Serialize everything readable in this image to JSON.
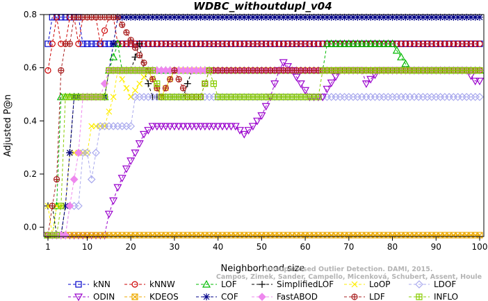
{
  "chart_data": {
    "type": "line",
    "title": "WDBC_withoutdupl_v04",
    "xlabel": "Neighborhood size",
    "ylabel": "Adjusted P@n",
    "xlim": [
      1,
      100
    ],
    "ylim": [
      -0.035,
      0.8
    ],
    "x_ticks": [
      1,
      10,
      20,
      30,
      40,
      50,
      60,
      70,
      80,
      90,
      100
    ],
    "y_ticks": [
      0.0,
      0.2,
      0.4,
      0.6,
      0.8
    ],
    "grid": false,
    "legend_position": "bottom",
    "watermark": [
      "Unsupervised Outlier Detection. DAMI, 2015.",
      "Campos, Zimek, Sander, Campello, Micenková, Schubert, Assent, Houle"
    ],
    "series": [
      {
        "name": "kNN",
        "color": "#0000cc",
        "marker": "square",
        "points": [
          [
            1,
            0.69
          ],
          [
            2,
            0.79
          ],
          [
            5,
            0.79
          ],
          [
            8,
            0.79
          ],
          [
            9,
            0.69
          ],
          [
            20,
            0.69
          ],
          [
            60,
            0.69
          ],
          [
            100,
            0.69
          ]
        ]
      },
      {
        "name": "kNNW",
        "color": "#cc0000",
        "marker": "circle",
        "points": [
          [
            1,
            0.59
          ],
          [
            2,
            0.69
          ],
          [
            3,
            0.79
          ],
          [
            4,
            0.69
          ],
          [
            5,
            0.69
          ],
          [
            6,
            0.79
          ],
          [
            7,
            0.79
          ],
          [
            8,
            0.69
          ],
          [
            9,
            0.79
          ],
          [
            12,
            0.79
          ],
          [
            13,
            0.69
          ],
          [
            15,
            0.79
          ],
          [
            16,
            0.79
          ],
          [
            17,
            0.69
          ],
          [
            100,
            0.69
          ]
        ]
      },
      {
        "name": "LOF",
        "color": "#00bb00",
        "marker": "triangle-up",
        "points": [
          [
            1,
            -0.03
          ],
          [
            2,
            -0.03
          ],
          [
            3,
            0.08
          ],
          [
            4,
            0.49
          ],
          [
            14,
            0.49
          ],
          [
            15,
            0.59
          ],
          [
            17,
            0.69
          ],
          [
            18,
            0.59
          ],
          [
            64,
            0.59
          ],
          [
            65,
            0.69
          ],
          [
            80,
            0.69
          ],
          [
            84,
            0.59
          ],
          [
            100,
            0.59
          ]
        ]
      },
      {
        "name": "SimplifiedLOF",
        "color": "#000000",
        "marker": "plus",
        "points": [
          [
            1,
            0.08
          ],
          [
            2,
            0.08
          ],
          [
            3,
            -0.03
          ],
          [
            4,
            -0.03
          ],
          [
            5,
            0.08
          ],
          [
            6,
            0.28
          ],
          [
            7,
            0.49
          ],
          [
            14,
            0.49
          ],
          [
            15,
            0.59
          ],
          [
            20,
            0.59
          ],
          [
            22,
            0.69
          ],
          [
            23,
            0.59
          ],
          [
            25,
            0.49
          ],
          [
            32,
            0.49
          ],
          [
            34,
            0.59
          ],
          [
            100,
            0.59
          ]
        ]
      },
      {
        "name": "LoOP",
        "color": "#ffee00",
        "marker": "x",
        "points": [
          [
            1,
            0.08
          ],
          [
            2,
            -0.03
          ],
          [
            3,
            0.08
          ],
          [
            5,
            0.08
          ],
          [
            6,
            0.28
          ],
          [
            8,
            0.28
          ],
          [
            10,
            0.28
          ],
          [
            11,
            0.38
          ],
          [
            14,
            0.38
          ],
          [
            16,
            0.49
          ],
          [
            17,
            0.59
          ],
          [
            20,
            0.49
          ],
          [
            24,
            0.59
          ],
          [
            27,
            0.49
          ],
          [
            30,
            0.59
          ],
          [
            100,
            0.59
          ]
        ]
      },
      {
        "name": "LDOF",
        "color": "#aaaaee",
        "marker": "diamond",
        "points": [
          [
            1,
            -0.03
          ],
          [
            5,
            -0.03
          ],
          [
            6,
            0.08
          ],
          [
            8,
            0.08
          ],
          [
            9,
            0.28
          ],
          [
            10,
            0.28
          ],
          [
            11,
            0.18
          ],
          [
            12,
            0.28
          ],
          [
            13,
            0.38
          ],
          [
            18,
            0.38
          ],
          [
            20,
            0.38
          ],
          [
            21,
            0.49
          ],
          [
            24,
            0.49
          ],
          [
            25,
            0.49
          ],
          [
            30,
            0.49
          ],
          [
            34,
            0.49
          ],
          [
            70,
            0.49
          ],
          [
            76,
            0.49
          ],
          [
            90,
            0.49
          ],
          [
            92,
            0.49
          ],
          [
            93,
            0.49
          ],
          [
            94,
            0.49
          ],
          [
            100,
            0.49
          ]
        ]
      },
      {
        "name": "ODIN",
        "color": "#9900cc",
        "marker": "triangle-down",
        "points": [
          [
            1,
            -0.03
          ],
          [
            14,
            -0.03
          ],
          [
            15,
            0.05
          ],
          [
            17,
            0.15
          ],
          [
            19,
            0.22
          ],
          [
            21,
            0.28
          ],
          [
            23,
            0.35
          ],
          [
            25,
            0.38
          ],
          [
            28,
            0.38
          ],
          [
            40,
            0.38
          ],
          [
            44,
            0.38
          ],
          [
            46,
            0.35
          ],
          [
            48,
            0.38
          ],
          [
            50,
            0.42
          ],
          [
            52,
            0.49
          ],
          [
            54,
            0.59
          ],
          [
            55,
            0.62
          ],
          [
            57,
            0.59
          ],
          [
            61,
            0.49
          ],
          [
            64,
            0.49
          ],
          [
            65,
            0.52
          ],
          [
            68,
            0.59
          ],
          [
            73,
            0.59
          ],
          [
            74,
            0.54
          ],
          [
            77,
            0.59
          ],
          [
            97,
            0.59
          ],
          [
            99,
            0.55
          ],
          [
            100,
            0.55
          ]
        ]
      },
      {
        "name": "KDEOS",
        "color": "#eeaa00",
        "marker": "square-x",
        "points": [
          [
            1,
            -0.03
          ],
          [
            100,
            -0.03
          ]
        ]
      },
      {
        "name": "COF",
        "color": "#000088",
        "marker": "asterisk",
        "points": [
          [
            1,
            -0.03
          ],
          [
            4,
            -0.03
          ],
          [
            5,
            0.08
          ],
          [
            6,
            0.28
          ],
          [
            7,
            0.49
          ],
          [
            14,
            0.49
          ],
          [
            15,
            0.59
          ],
          [
            16,
            0.69
          ],
          [
            17,
            0.79
          ],
          [
            100,
            0.79
          ]
        ]
      },
      {
        "name": "FastABOD",
        "color": "#ee88ee",
        "marker": "diamond-fill",
        "points": [
          [
            1,
            -0.03
          ],
          [
            5,
            -0.03
          ],
          [
            6,
            0.08
          ],
          [
            8,
            0.28
          ],
          [
            9,
            0.49
          ],
          [
            13,
            0.49
          ],
          [
            15,
            0.59
          ],
          [
            100,
            0.59
          ]
        ]
      },
      {
        "name": "LDF",
        "color": "#aa2222",
        "marker": "circle-plus",
        "points": [
          [
            1,
            -0.03
          ],
          [
            2,
            0.08
          ],
          [
            3,
            0.18
          ],
          [
            4,
            0.59
          ],
          [
            5,
            0.69
          ],
          [
            6,
            0.69
          ],
          [
            7,
            0.79
          ],
          [
            17,
            0.79
          ],
          [
            24,
            0.59
          ],
          [
            27,
            0.49
          ],
          [
            30,
            0.59
          ],
          [
            33,
            0.49
          ],
          [
            36,
            0.49
          ],
          [
            38,
            0.59
          ],
          [
            100,
            0.59
          ]
        ]
      },
      {
        "name": "INFLO",
        "color": "#88cc00",
        "marker": "square-cross",
        "points": [
          [
            1,
            -0.03
          ],
          [
            3,
            -0.03
          ],
          [
            4,
            0.08
          ],
          [
            5,
            0.49
          ],
          [
            14,
            0.49
          ],
          [
            15,
            0.59
          ],
          [
            25,
            0.59
          ],
          [
            27,
            0.49
          ],
          [
            36,
            0.49
          ],
          [
            38,
            0.59
          ],
          [
            40,
            0.49
          ],
          [
            63,
            0.49
          ],
          [
            64,
            0.59
          ],
          [
            100,
            0.59
          ]
        ]
      }
    ]
  }
}
